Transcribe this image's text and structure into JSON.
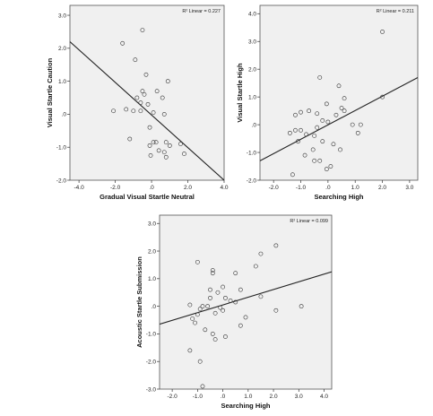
{
  "chart_data": [
    {
      "type": "scatter",
      "xlabel": "Gradual Visual Startle Neutral",
      "ylabel": "Visual Startle Caution",
      "annotation": "R² Linear = 0.227",
      "xlim": [
        -4.5,
        4.0
      ],
      "ylim": [
        -2.0,
        3.3
      ],
      "xticks": [
        -4.0,
        -2.0,
        0.0,
        2.0,
        4.0
      ],
      "xtick_labels": [
        "-4.0",
        "-2.0",
        ".0",
        "2.0",
        "4.0"
      ],
      "yticks": [
        -2.0,
        -1.0,
        0.0,
        1.0,
        2.0,
        3.0
      ],
      "ytick_labels": [
        "-2.0",
        "-1.0",
        ".0",
        "1.0",
        "2.0",
        "3.0"
      ],
      "fit_line": [
        [
          -4.5,
          2.2
        ],
        [
          4.0,
          -2.0
        ]
      ],
      "points": [
        {
          "x": -1.6,
          "y": 2.15
        },
        {
          "x": -0.5,
          "y": 2.55
        },
        {
          "x": -0.9,
          "y": 1.65
        },
        {
          "x": -0.3,
          "y": 1.2
        },
        {
          "x": 0.9,
          "y": 1.0
        },
        {
          "x": -0.5,
          "y": 0.7
        },
        {
          "x": -0.4,
          "y": 0.6
        },
        {
          "x": 0.3,
          "y": 0.7
        },
        {
          "x": -0.8,
          "y": 0.5
        },
        {
          "x": 0.6,
          "y": 0.5
        },
        {
          "x": -0.6,
          "y": 0.35
        },
        {
          "x": -0.2,
          "y": 0.3
        },
        {
          "x": -1.4,
          "y": 0.15
        },
        {
          "x": -2.1,
          "y": 0.1
        },
        {
          "x": -1.0,
          "y": 0.1
        },
        {
          "x": -0.6,
          "y": 0.1
        },
        {
          "x": 0.1,
          "y": 0.05
        },
        {
          "x": 0.7,
          "y": 0.0
        },
        {
          "x": -0.1,
          "y": -0.4
        },
        {
          "x": -1.2,
          "y": -0.75
        },
        {
          "x": 0.1,
          "y": -0.85
        },
        {
          "x": 0.25,
          "y": -0.85
        },
        {
          "x": 0.8,
          "y": -0.85
        },
        {
          "x": 1.6,
          "y": -0.9
        },
        {
          "x": -0.1,
          "y": -0.95
        },
        {
          "x": 1.0,
          "y": -0.95
        },
        {
          "x": 0.4,
          "y": -1.1
        },
        {
          "x": 0.7,
          "y": -1.15
        },
        {
          "x": -0.05,
          "y": -1.25
        },
        {
          "x": 0.8,
          "y": -1.3
        },
        {
          "x": 1.8,
          "y": -1.2
        }
      ]
    },
    {
      "type": "scatter",
      "xlabel": "Searching High",
      "ylabel": "Visual Startle High",
      "annotation": "R² Linear = 0.211",
      "xlim": [
        -2.5,
        3.3
      ],
      "ylim": [
        -2.0,
        4.3
      ],
      "xticks": [
        -2.0,
        -1.0,
        0.0,
        1.0,
        2.0,
        3.0
      ],
      "xtick_labels": [
        "-2.0",
        "-1.0",
        ".0",
        "1.0",
        "2.0",
        "3.0"
      ],
      "yticks": [
        -2.0,
        -1.0,
        0.0,
        1.0,
        2.0,
        3.0,
        4.0
      ],
      "ytick_labels": [
        "-2.0",
        "-1.0",
        ".0",
        "1.0",
        "2.0",
        "3.0",
        "4.0"
      ],
      "fit_line": [
        [
          -2.5,
          -1.3
        ],
        [
          3.3,
          1.7
        ]
      ],
      "points": [
        {
          "x": 2.0,
          "y": 3.35
        },
        {
          "x": -0.3,
          "y": 1.7
        },
        {
          "x": 0.4,
          "y": 1.4
        },
        {
          "x": 2.0,
          "y": 1.0
        },
        {
          "x": 0.6,
          "y": 0.95
        },
        {
          "x": 0.5,
          "y": 0.6
        },
        {
          "x": 0.6,
          "y": 0.5
        },
        {
          "x": -0.05,
          "y": 0.75
        },
        {
          "x": -1.0,
          "y": 0.45
        },
        {
          "x": -0.7,
          "y": 0.5
        },
        {
          "x": -0.4,
          "y": 0.4
        },
        {
          "x": -1.2,
          "y": 0.35
        },
        {
          "x": 0.3,
          "y": 0.35
        },
        {
          "x": -0.2,
          "y": 0.15
        },
        {
          "x": 0.0,
          "y": 0.1
        },
        {
          "x": 0.9,
          "y": 0.0
        },
        {
          "x": 1.2,
          "y": 0.0
        },
        {
          "x": -0.4,
          "y": -0.1
        },
        {
          "x": -1.2,
          "y": -0.2
        },
        {
          "x": -1.0,
          "y": -0.2
        },
        {
          "x": -1.4,
          "y": -0.3
        },
        {
          "x": -0.8,
          "y": -0.35
        },
        {
          "x": -0.5,
          "y": -0.4
        },
        {
          "x": 1.1,
          "y": -0.3
        },
        {
          "x": -1.1,
          "y": -0.6
        },
        {
          "x": -0.2,
          "y": -0.6
        },
        {
          "x": 0.2,
          "y": -0.7
        },
        {
          "x": -0.55,
          "y": -0.9
        },
        {
          "x": 0.45,
          "y": -0.9
        },
        {
          "x": -0.85,
          "y": -1.1
        },
        {
          "x": -0.5,
          "y": -1.3
        },
        {
          "x": -0.3,
          "y": -1.3
        },
        {
          "x": 0.1,
          "y": -1.5
        },
        {
          "x": -0.05,
          "y": -1.6
        },
        {
          "x": -1.3,
          "y": -1.8
        }
      ]
    },
    {
      "type": "scatter",
      "xlabel": "Searching High",
      "ylabel": "Acoustic Startle Submission",
      "annotation": "R² Linear = 0.099",
      "xlim": [
        -2.5,
        4.3
      ],
      "ylim": [
        -3.0,
        3.3
      ],
      "xticks": [
        -2.0,
        -1.0,
        0.0,
        1.0,
        2.0,
        3.0,
        4.0
      ],
      "xtick_labels": [
        "-2.0",
        "-1.0",
        ".0",
        "1.0",
        "2.0",
        "3.0",
        "4.0"
      ],
      "yticks": [
        -3.0,
        -2.0,
        -1.0,
        0.0,
        1.0,
        2.0,
        3.0
      ],
      "ytick_labels": [
        "-3.0",
        "-2.0",
        "-1.0",
        ".0",
        "1.0",
        "2.0",
        "3.0"
      ],
      "fit_line": [
        [
          -2.5,
          -0.65
        ],
        [
          4.3,
          1.25
        ]
      ],
      "points": [
        {
          "x": 2.1,
          "y": 2.2
        },
        {
          "x": 1.5,
          "y": 1.9
        },
        {
          "x": -1.0,
          "y": 1.6
        },
        {
          "x": 1.3,
          "y": 1.45
        },
        {
          "x": -0.4,
          "y": 1.3
        },
        {
          "x": -0.4,
          "y": 1.2
        },
        {
          "x": 0.5,
          "y": 1.2
        },
        {
          "x": 0.0,
          "y": 0.7
        },
        {
          "x": -0.5,
          "y": 0.6
        },
        {
          "x": 0.7,
          "y": 0.6
        },
        {
          "x": -0.2,
          "y": 0.5
        },
        {
          "x": 1.5,
          "y": 0.35
        },
        {
          "x": -0.5,
          "y": 0.3
        },
        {
          "x": 0.1,
          "y": 0.3
        },
        {
          "x": 0.3,
          "y": 0.2
        },
        {
          "x": 0.5,
          "y": 0.15
        },
        {
          "x": -1.3,
          "y": 0.05
        },
        {
          "x": -0.8,
          "y": 0.0
        },
        {
          "x": -0.6,
          "y": 0.0
        },
        {
          "x": -0.1,
          "y": -0.05
        },
        {
          "x": 3.1,
          "y": 0.0
        },
        {
          "x": -0.9,
          "y": -0.1
        },
        {
          "x": 0.0,
          "y": -0.15
        },
        {
          "x": 2.1,
          "y": -0.15
        },
        {
          "x": -0.3,
          "y": -0.25
        },
        {
          "x": -1.0,
          "y": -0.3
        },
        {
          "x": -1.2,
          "y": -0.45
        },
        {
          "x": 0.9,
          "y": -0.4
        },
        {
          "x": -1.1,
          "y": -0.6
        },
        {
          "x": 0.7,
          "y": -0.7
        },
        {
          "x": -0.7,
          "y": -0.85
        },
        {
          "x": -0.4,
          "y": -1.0
        },
        {
          "x": 0.1,
          "y": -1.1
        },
        {
          "x": -0.3,
          "y": -1.2
        },
        {
          "x": -1.3,
          "y": -1.6
        },
        {
          "x": -0.9,
          "y": -2.0
        },
        {
          "x": -0.8,
          "y": -2.9
        }
      ]
    }
  ]
}
